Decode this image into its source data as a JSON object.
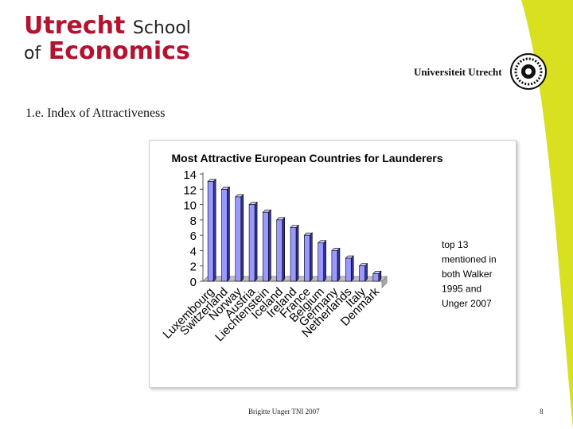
{
  "header": {
    "logo_word1": "Utrecht",
    "logo_word2": "School",
    "logo_word3": "of",
    "logo_word4": "Economics",
    "university": "Universiteit Utrecht"
  },
  "slide": {
    "title": "1.e. Index of Attractiveness"
  },
  "footer": {
    "author": "Brigitte Unger TNI 2007",
    "page": "8"
  },
  "colors": {
    "brand_red": "#b5122f",
    "swoosh_yellow": "#d8e020",
    "bar_fill": "#9999ff"
  },
  "chart_data": {
    "type": "bar",
    "title": "Most Attractive European Countries for Launderers",
    "categories": [
      "Luxembourg",
      "Switzerland",
      "Norway",
      "Austria",
      "Liechtenstein",
      "Iceland",
      "Ireland",
      "France",
      "Belgium",
      "Germany",
      "Netherlands",
      "Italy",
      "Denmark"
    ],
    "values": [
      13,
      12,
      11,
      10,
      9,
      8,
      7,
      6,
      5,
      4,
      3,
      2,
      1
    ],
    "yticks": [
      0,
      2,
      4,
      6,
      8,
      10,
      12,
      14
    ],
    "ylim": [
      0,
      14
    ],
    "xlabel": "",
    "ylabel": "",
    "legend_note": [
      "top 13",
      "mentioned in",
      "both Walker",
      "1995 and",
      "Unger 2007"
    ],
    "grid": false
  }
}
